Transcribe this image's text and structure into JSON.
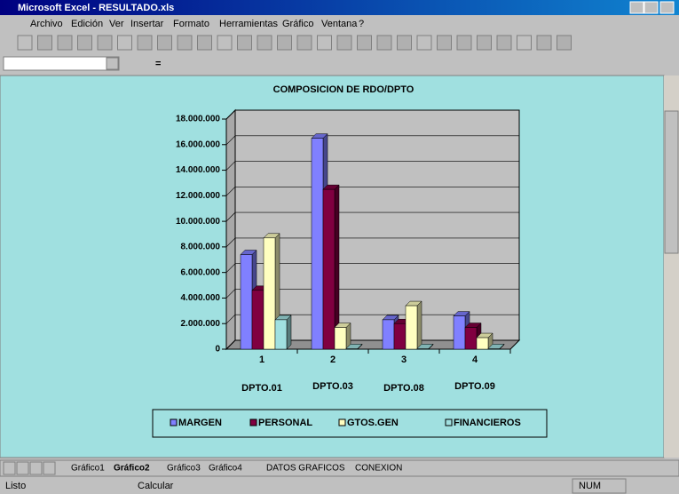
{
  "window": {
    "title": "Microsoft Excel - RESULTADO.xls"
  },
  "menu": [
    "Archivo",
    "Edición",
    "Ver",
    "Insertar",
    "Formato",
    "Herramientas",
    "Gráfico",
    "Ventana",
    "?"
  ],
  "formula_bar": {
    "equals": "="
  },
  "chart_data": {
    "type": "bar3d",
    "title": "COMPOSICION DE RDO/DPTO",
    "categories": [
      "1",
      "2",
      "3",
      "4"
    ],
    "category_labels": [
      "DPTO.01",
      "DPTO.03",
      "DPTO.08",
      "DPTO.09"
    ],
    "series": [
      {
        "name": "MARGEN",
        "color": "#8080ff",
        "values": [
          7400000,
          16500000,
          2300000,
          2600000
        ]
      },
      {
        "name": "PERSONAL",
        "color": "#800040",
        "values": [
          4600000,
          12500000,
          2000000,
          1700000
        ]
      },
      {
        "name": "GTOS.GEN",
        "color": "#ffffc0",
        "values": [
          8700000,
          1700000,
          3400000,
          900000
        ]
      },
      {
        "name": "FINANCIEROS",
        "color": "#a0e0e0",
        "values": [
          2300000,
          50000,
          50000,
          50000
        ]
      }
    ],
    "ylim": [
      0,
      18000000
    ],
    "yticks": [
      0,
      {
        "value": 2000000,
        "label": "2.000.000"
      },
      {
        "value": 4000000,
        "label": "4.000.000"
      },
      {
        "value": 6000000,
        "label": "6.000.000"
      },
      {
        "value": 8000000,
        "label": "8.000.000"
      },
      {
        "value": 10000000,
        "label": "10.000.000"
      },
      {
        "value": 12000000,
        "label": "12.000.000"
      },
      {
        "value": 14000000,
        "label": "14.000.000"
      },
      {
        "value": 16000000,
        "label": "16.000.000"
      },
      {
        "value": 18000000,
        "label": "18.000.000"
      }
    ],
    "grid": true
  },
  "sheet_tabs": [
    "Gráfico1",
    "Gráfico2",
    "Gráfico3",
    "Gráfico4",
    "DATOS GRAFICOS",
    "CONEXION"
  ],
  "status": {
    "left": "Listo",
    "middle": "Calcular",
    "num": "NUM"
  }
}
